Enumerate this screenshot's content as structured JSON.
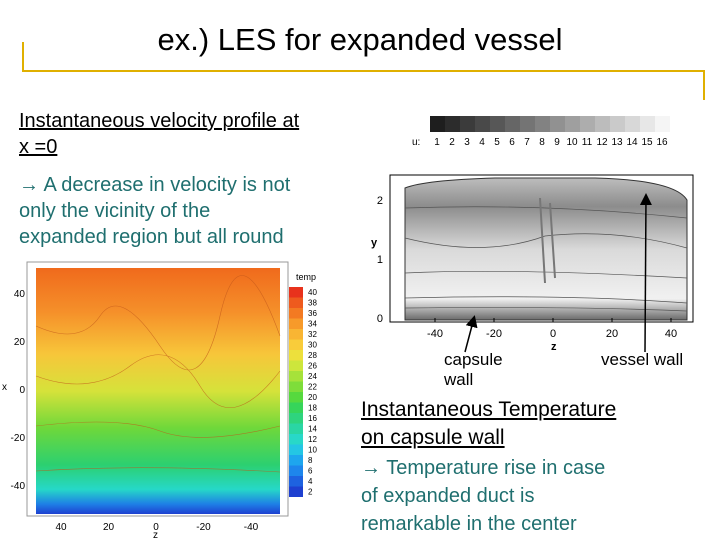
{
  "slide": {
    "title": "ex.) LES for expanded vessel",
    "velocity_heading_l1": "Instantaneous velocity profile at",
    "velocity_heading_l2": "x =0",
    "velocity_note_l1": "A decrease in velocity is not",
    "velocity_note_l2": "only the vicinity of the",
    "velocity_note_l3": "expanded region but all round",
    "temp_heading_l1": "Instantaneous Temperature",
    "temp_heading_l2": "on capsule wall",
    "temp_note_l1": "Temperature rise in case",
    "temp_note_l2": "of expanded duct is",
    "temp_note_l3": "remarkable in the center",
    "arrow_glyph": "→",
    "label_capsule_l1": "capsule",
    "label_capsule_l2": "wall",
    "label_vessel": "vessel wall"
  },
  "velocity_plot": {
    "legend_var": "u:",
    "legend_values": [
      "1",
      "2",
      "3",
      "4",
      "5",
      "6",
      "7",
      "8",
      "9",
      "10",
      "11",
      "12",
      "13",
      "14",
      "15",
      "16"
    ],
    "xlabel": "z",
    "ylabel": "y",
    "x_ticks": [
      "-40",
      "-20",
      "0",
      "20",
      "40"
    ],
    "y_ticks": [
      "0",
      "1",
      "2"
    ]
  },
  "temp_plot": {
    "legend_title": "temp",
    "legend_values": [
      "40",
      "38",
      "36",
      "34",
      "32",
      "30",
      "28",
      "26",
      "24",
      "22",
      "20",
      "18",
      "16",
      "14",
      "12",
      "10",
      "8",
      "6",
      "4",
      "2"
    ],
    "xlabel": "z",
    "ylabel": "x",
    "x_ticks": [
      "40",
      "20",
      "0",
      "-20",
      "-40"
    ],
    "y_ticks": [
      "40",
      "20",
      "0",
      "-20",
      "-40"
    ]
  }
}
